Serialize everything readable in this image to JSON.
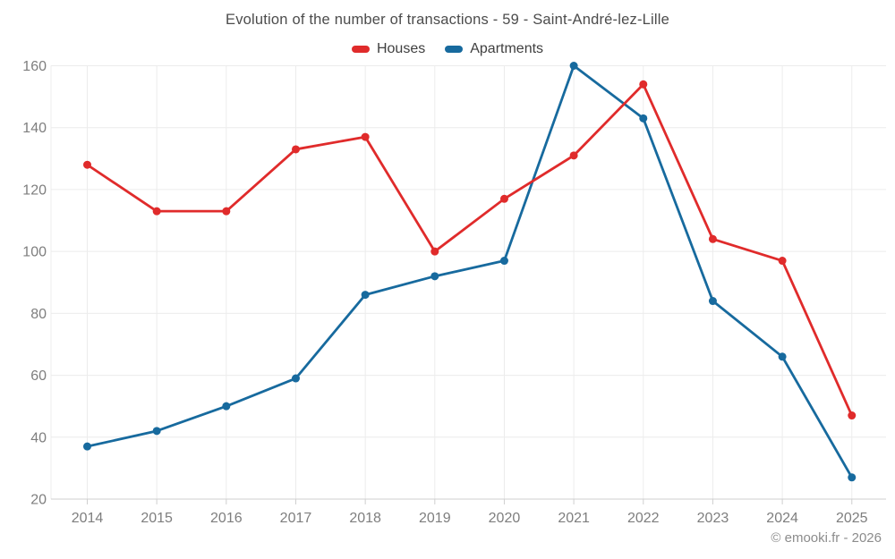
{
  "chart_data": {
    "type": "line",
    "title": "Evolution of the number of transactions - 59 - Saint-André-lez-Lille",
    "categories": [
      "2014",
      "2015",
      "2016",
      "2017",
      "2018",
      "2019",
      "2020",
      "2021",
      "2022",
      "2023",
      "2024",
      "2025"
    ],
    "series": [
      {
        "name": "Houses",
        "color": "#e02b2b",
        "values": [
          128,
          113,
          113,
          133,
          137,
          100,
          117,
          131,
          154,
          104,
          97,
          47
        ]
      },
      {
        "name": "Apartments",
        "color": "#176a9e",
        "values": [
          37,
          42,
          50,
          59,
          86,
          92,
          97,
          160,
          143,
          84,
          66,
          27
        ]
      }
    ],
    "xlabel": "",
    "ylabel": "",
    "ylim": [
      20,
      160
    ],
    "yticks": [
      20,
      40,
      60,
      80,
      100,
      120,
      140,
      160
    ],
    "grid": true,
    "legend_position": "top",
    "marker": "circle"
  },
  "footer": {
    "text": "© emooki.fr - 2026"
  },
  "colors": {
    "houses": "#e02b2b",
    "apartments": "#176a9e",
    "gridline": "#ececec",
    "axis_line": "#cfcfcf",
    "tick_label": "#7e7e7e",
    "title_text": "#4c4c4c",
    "footer_text": "#8c8c8c"
  }
}
